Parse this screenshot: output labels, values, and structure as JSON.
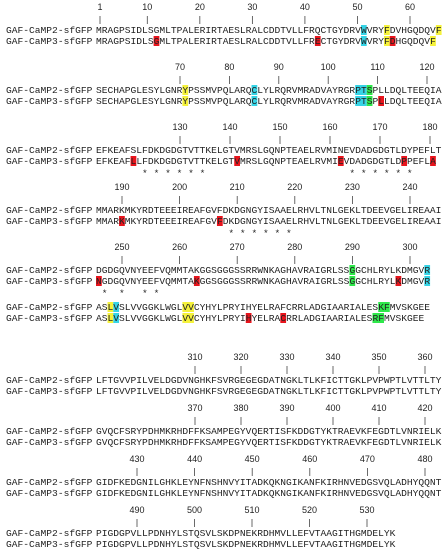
{
  "blocks": [
    {
      "ruler": [
        1,
        10,
        20,
        30,
        40,
        50,
        60
      ],
      "rows": [
        {
          "name": "GAF-CaMP2-sfGFP",
          "segments": [
            {
              "text": "MRAGPSIDLSGMLTPALERIRTAESLRALCDDTVLLFRQCTGYDRV"
            },
            {
              "text": "W",
              "color": "#35d4e6"
            },
            {
              "text": "VRY"
            },
            {
              "text": "F",
              "color": "#f5f23a"
            },
            {
              "text": "DVHGQDQV"
            },
            {
              "text": "F",
              "color": "#f5f23a"
            }
          ]
        },
        {
          "name": "GAF-CaMP3-sfGFP",
          "segments": [
            {
              "text": "MRAGPSIDLS"
            },
            {
              "text": "G",
              "color": "#e8141c"
            },
            {
              "text": "MLTPALERIRTAESLRALCDDTVLLFR"
            },
            {
              "text": "E",
              "color": "#e8141c"
            },
            {
              "text": "CTGYDRV"
            },
            {
              "text": "W",
              "color": "#35d4e6"
            },
            {
              "text": "VRY"
            },
            {
              "text": "F",
              "color": "#f5f23a"
            },
            {
              "text": "D",
              "color": "#e8141c"
            },
            {
              "text": "HGQDQV"
            },
            {
              "text": "F",
              "color": "#f5f23a"
            }
          ]
        }
      ]
    },
    {
      "ruler": [
        70,
        80,
        90,
        100,
        110,
        120
      ],
      "rows": [
        {
          "name": "GAF-CaMP2-sfGFP",
          "segments": [
            {
              "text": "SECHAPGLESYLGNR"
            },
            {
              "text": "Y",
              "color": "#f5f23a"
            },
            {
              "text": "PSSMVPQLARQ"
            },
            {
              "text": "C",
              "color": "#35d4e6"
            },
            {
              "text": "LYLRQRVMRADVAYRGR"
            },
            {
              "text": "PT",
              "color": "#35d4e6"
            },
            {
              "text": "S",
              "color": "#2ee84a"
            },
            {
              "text": "PLLDQLTEEQIA"
            }
          ]
        },
        {
          "name": "GAF-CaMP3-sfGFP",
          "segments": [
            {
              "text": "SECHAPGLESYLGNR"
            },
            {
              "text": "Y",
              "color": "#f5f23a"
            },
            {
              "text": "PSSMVPQLARQ"
            },
            {
              "text": "C",
              "color": "#35d4e6"
            },
            {
              "text": "LYLRQRVMRADVAYRGR"
            },
            {
              "text": "PT",
              "color": "#35d4e6"
            },
            {
              "text": "S",
              "color": "#2ee84a"
            },
            {
              "text": "P"
            },
            {
              "text": "L",
              "color": "#e8141c"
            },
            {
              "text": "LDQLTEEQIA"
            }
          ]
        }
      ]
    },
    {
      "ruler": [
        130,
        140,
        150,
        160,
        170,
        180
      ],
      "rows": [
        {
          "name": "GAF-CaMP2-sfGFP",
          "segments": [
            {
              "text": "EFKEAFSLFDKDGDGTVTTKELGTVMRSLGQNPTEAELRVMINEVDADGDGTLDYPEFLT"
            }
          ]
        },
        {
          "name": "GAF-CaMP3-sfGFP",
          "segments": [
            {
              "text": "EFKEAF"
            },
            {
              "text": "L",
              "color": "#e8141c"
            },
            {
              "text": "LFDKDGDGTVTTKELGT"
            },
            {
              "text": "V",
              "color": "#e8141c"
            },
            {
              "text": "MRSLGQNPTEAELRVMI"
            },
            {
              "text": "E",
              "color": "#e8141c"
            },
            {
              "text": "VDADGDGTLD"
            },
            {
              "text": "P",
              "color": "#e8141c"
            },
            {
              "text": "PEFL"
            },
            {
              "text": "A",
              "color": "#e8141c"
            }
          ]
        }
      ],
      "asterisks": "        * * * * * *                         * * * * * *"
    },
    {
      "ruler": [
        190,
        200,
        210,
        220,
        230,
        240
      ],
      "rows": [
        {
          "name": "GAF-CaMP2-sfGFP",
          "segments": [
            {
              "text": "MMARKMKYRDTEEEIREAFGVFDKDGNGYISAAELRHVLTNLGEKLTDEEVGELIREAAI"
            }
          ]
        },
        {
          "name": "GAF-CaMP3-sfGFP",
          "segments": [
            {
              "text": "MMAR"
            },
            {
              "text": "K",
              "color": "#e8141c"
            },
            {
              "text": "MKYRDTEEEIREAFGV"
            },
            {
              "text": "F",
              "color": "#e8141c"
            },
            {
              "text": "DKDGNGYISAAELRHVLTNLGEKLTDEEVGELIREAAI"
            }
          ]
        }
      ],
      "asterisks": "                       * * * * * *"
    },
    {
      "ruler": [
        250,
        260,
        270,
        280,
        290,
        300
      ],
      "rows": [
        {
          "name": "GAF-CaMP2-sfGFP",
          "segments": [
            {
              "text": "DGDGQVNYEEFVQMMTAKGGSGGGSSRRWNKAGHAVRAIGRLSS"
            },
            {
              "text": "G",
              "color": "#2ee84a"
            },
            {
              "text": "GCHLRYLKDMGV"
            },
            {
              "text": "R",
              "color": "#35d4e6"
            }
          ]
        },
        {
          "name": "GAF-CaMP3-sfGFP",
          "segments": [
            {
              "text": "N",
              "color": "#e8141c"
            },
            {
              "text": "GDGQVNYEEFVQMMTA"
            },
            {
              "text": "K",
              "color": "#e8141c"
            },
            {
              "text": "GGSGGGSSRRWNKAGHAVRAIGRLSS"
            },
            {
              "text": "G",
              "color": "#2ee84a"
            },
            {
              "text": "GCHLRYL"
            },
            {
              "text": "K",
              "color": "#e8141c"
            },
            {
              "text": "DMGV"
            },
            {
              "text": "R",
              "color": "#35d4e6"
            }
          ]
        }
      ],
      "asterisks": " *  *   * *"
    },
    {
      "ruler": [],
      "rows": [
        {
          "name": "GAF-CaMP2-sfGFP",
          "segments": [
            {
              "text": "AS"
            },
            {
              "text": "L",
              "color": "#f5f23a"
            },
            {
              "text": "V",
              "color": "#35d4e6"
            },
            {
              "text": "SLVVGGKLWGL"
            },
            {
              "text": "VV",
              "color": "#f5f23a"
            },
            {
              "text": "CYHYLPRYIHYELRAFCRRLADGIAARIALES"
            },
            {
              "text": "KF",
              "color": "#2ee84a"
            },
            {
              "text": "MVSKGEE"
            }
          ]
        },
        {
          "name": "GAF-CaMP3-sfGFP",
          "segments": [
            {
              "text": "AS"
            },
            {
              "text": "L",
              "color": "#f5f23a"
            },
            {
              "text": "V",
              "color": "#35d4e6"
            },
            {
              "text": "SLVVGGKLWGL"
            },
            {
              "text": "VV",
              "color": "#f5f23a"
            },
            {
              "text": "CYHYLPRYI"
            },
            {
              "text": "H",
              "color": "#e8141c"
            },
            {
              "text": "YELRA"
            },
            {
              "text": "C",
              "color": "#e8141c"
            },
            {
              "text": "RRLADGIAARIALES"
            },
            {
              "text": "RF",
              "color": "#2ee84a"
            },
            {
              "text": "MVSKGEE"
            }
          ]
        }
      ]
    },
    {
      "ruler": [
        310,
        320,
        330,
        340,
        350,
        360
      ],
      "rows": [
        {
          "name": "GAF-CaMP2-sfGFP",
          "segments": [
            {
              "text": "LFTGVVPILVELDGDVNGHKFSVRGEGEGDATNGKLTLKFICTTGKLPVPWPTLVTTLTY"
            }
          ]
        },
        {
          "name": "GAF-CaMP3-sfGFP",
          "segments": [
            {
              "text": "LFTGVVPILVELDGDVNGHKFSVRGEGEGDATNGKLTLKFICTTGKLPVPWPTLVTTLTY"
            }
          ]
        }
      ]
    },
    {
      "ruler": [
        370,
        380,
        390,
        400,
        410,
        420
      ],
      "rows": [
        {
          "name": "GAF-CaMP2-sfGFP",
          "segments": [
            {
              "text": "GVQCFSRYPDHMKRHDFFKSAMPEGYVQERTISFKDDGTYKTRAEVKFEGDTLVNRIELK"
            }
          ]
        },
        {
          "name": "GAF-CaMP3-sfGFP",
          "segments": [
            {
              "text": "GVQCFSRYPDHMKRHDFFKSAMPEGYVQERTISFKDDGTYKTRAEVKFEGDTLVNRIELK"
            }
          ]
        }
      ]
    },
    {
      "ruler": [
        430,
        440,
        450,
        460,
        470,
        480
      ],
      "rows": [
        {
          "name": "GAF-CaMP2-sfGFP",
          "segments": [
            {
              "text": "GIDFKEDGNILGHKLEYNFNSHNVYITADKQKNGIKANFKIRHNVEDGSVQLADHYQQNT"
            }
          ]
        },
        {
          "name": "GAF-CaMP3-sfGFP",
          "segments": [
            {
              "text": "GIDFKEDGNILGHKLEYNFNSHNVYITADKQKNGIKANFKIRHNVEDGSVQLADHYQQNT"
            }
          ]
        }
      ]
    },
    {
      "ruler": [
        490,
        500,
        510,
        520,
        530
      ],
      "rows": [
        {
          "name": "GAF-CaMP2-sfGFP",
          "segments": [
            {
              "text": "PIGDGPVLLPDNHYLSTQSVLSKDPNEKRDHMVLLEFVTAAGITHGMDELYK"
            }
          ]
        },
        {
          "name": "GAF-CaMP3-sfGFP",
          "segments": [
            {
              "text": "PIGDGPVLLPDNHYLSTQSVLSKDPNEKRDHMVLLEFVTAAGITHGMDELYK"
            }
          ]
        }
      ]
    }
  ]
}
